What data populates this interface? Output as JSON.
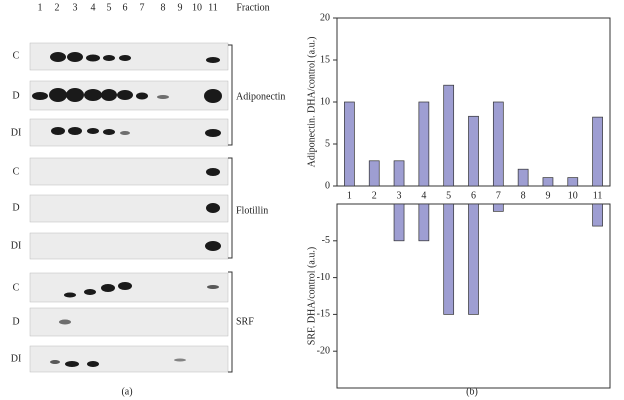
{
  "blot": {
    "fraction_labels": [
      "1",
      "2",
      "3",
      "4",
      "5",
      "6",
      "7",
      "8",
      "9",
      "10",
      "11"
    ],
    "fraction_title": "Fraction",
    "groups": [
      {
        "name": "Adiponectin",
        "rows": [
          "C",
          "D",
          "DI"
        ]
      },
      {
        "name": "Flotillin",
        "rows": [
          "C",
          "D",
          "DI"
        ]
      },
      {
        "name": "SRF",
        "rows": [
          "C",
          "D",
          "DI"
        ]
      }
    ],
    "caption": "(a)"
  },
  "chart_caption": "(b)",
  "chart_data": [
    {
      "type": "bar",
      "y_label": "Adiponectin. DHA/control (a.u.)",
      "categories": [
        "1",
        "2",
        "3",
        "4",
        "5",
        "6",
        "7",
        "8",
        "9",
        "10",
        "11"
      ],
      "values": [
        10,
        3,
        3,
        10,
        12,
        8.3,
        10,
        2,
        1,
        1,
        8.2
      ],
      "color": "#9e9ed2",
      "ylim": [
        0,
        20
      ],
      "yticks": [
        0,
        5,
        10,
        15,
        20
      ]
    },
    {
      "type": "bar",
      "y_label": "SRF. DHA/control (a.u.)",
      "values": [
        0,
        0,
        -5,
        -5,
        -15,
        -15,
        -1,
        0,
        0,
        0,
        -3
      ],
      "color": "#9e9ed2",
      "ylim": [
        -25,
        0
      ],
      "yticks": [
        -20,
        -15,
        -10,
        -5
      ]
    }
  ]
}
